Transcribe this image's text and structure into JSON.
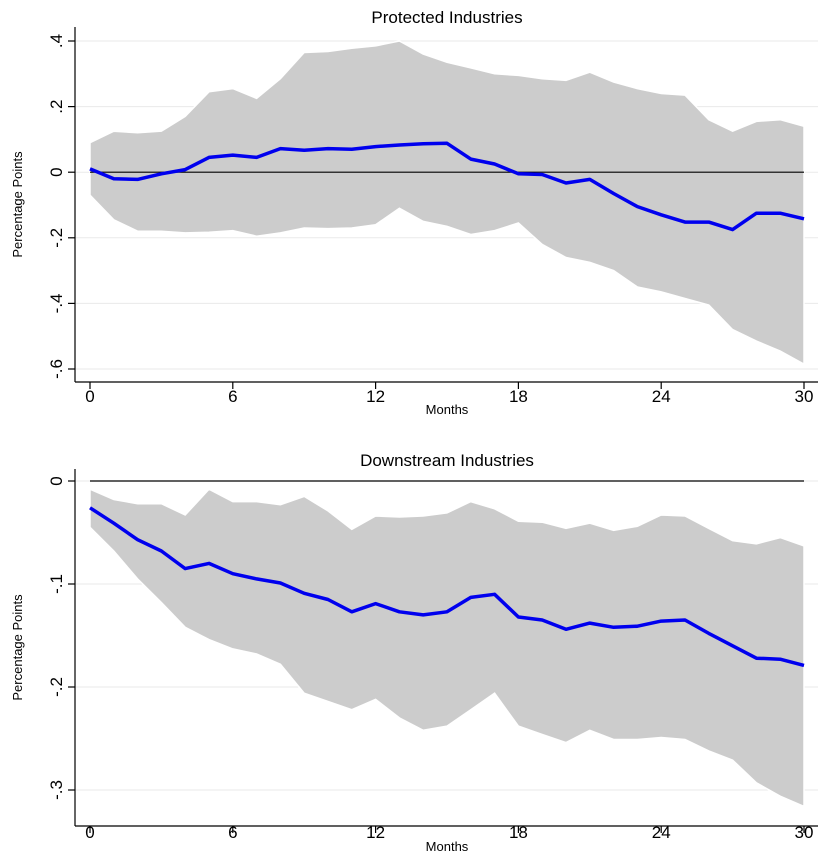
{
  "chart_data": [
    {
      "type": "line",
      "title": "Protected Industries",
      "xlabel": "Months",
      "ylabel": "Percentage Points",
      "xlim": [
        0,
        30
      ],
      "ylim": [
        -0.6,
        0.4
      ],
      "xticks": [
        0,
        6,
        12,
        18,
        24,
        30
      ],
      "xtick_labels": [
        "0",
        "6",
        "12",
        "18",
        "24",
        "30"
      ],
      "yticks": [
        -0.6,
        -0.4,
        -0.2,
        0,
        0.2,
        0.4
      ],
      "ytick_labels": [
        "-.6",
        "-.4",
        "-.2",
        "0",
        ".2",
        ".4"
      ],
      "grid": true,
      "zero_line": true,
      "colors": {
        "line": "#0000ee",
        "band": "#cccccc",
        "band_edge": "#ffffff",
        "zero_line": "#000000"
      },
      "x": [
        0,
        1,
        2,
        3,
        4,
        5,
        6,
        7,
        8,
        9,
        10,
        11,
        12,
        13,
        14,
        15,
        16,
        17,
        18,
        19,
        20,
        21,
        22,
        23,
        24,
        25,
        26,
        27,
        28,
        29,
        30
      ],
      "series": [
        {
          "values": [
            0.01,
            -0.02,
            -0.022,
            -0.005,
            0.008,
            0.045,
            0.052,
            0.045,
            0.072,
            0.067,
            0.072,
            0.07,
            0.078,
            0.083,
            0.087,
            0.088,
            0.04,
            0.025,
            -0.005,
            -0.007,
            -0.033,
            -0.022,
            -0.065,
            -0.105,
            -0.13,
            -0.152,
            -0.152,
            -0.175,
            -0.125,
            -0.125,
            -0.142
          ]
        }
      ],
      "band_upper": [
        0.09,
        0.125,
        0.12,
        0.125,
        0.17,
        0.245,
        0.255,
        0.225,
        0.285,
        0.365,
        0.368,
        0.378,
        0.385,
        0.4,
        0.36,
        0.335,
        0.318,
        0.3,
        0.295,
        0.285,
        0.28,
        0.305,
        0.275,
        0.255,
        0.24,
        0.235,
        0.16,
        0.125,
        0.155,
        0.16,
        0.14
      ],
      "band_lower": [
        -0.07,
        -0.145,
        -0.18,
        -0.18,
        -0.185,
        -0.183,
        -0.178,
        -0.195,
        -0.185,
        -0.17,
        -0.172,
        -0.17,
        -0.16,
        -0.11,
        -0.15,
        -0.165,
        -0.19,
        -0.178,
        -0.155,
        -0.22,
        -0.26,
        -0.275,
        -0.3,
        -0.35,
        -0.365,
        -0.385,
        -0.405,
        -0.48,
        -0.515,
        -0.545,
        -0.585
      ]
    },
    {
      "type": "line",
      "title": "Downstream Industries",
      "xlabel": "Months",
      "ylabel": "Percentage Points",
      "xlim": [
        0,
        30
      ],
      "ylim": [
        -0.3,
        0
      ],
      "xticks": [
        0,
        6,
        12,
        18,
        24,
        30
      ],
      "xtick_labels": [
        "0",
        "6",
        "12",
        "18",
        "24",
        "30"
      ],
      "yticks": [
        -0.3,
        -0.2,
        -0.1,
        0
      ],
      "ytick_labels": [
        "-.3",
        "-.2",
        "-.1",
        "0"
      ],
      "grid": true,
      "zero_line": true,
      "colors": {
        "line": "#0000ee",
        "band": "#cccccc",
        "band_edge": "#ffffff",
        "zero_line": "#000000"
      },
      "x": [
        0,
        1,
        2,
        3,
        4,
        5,
        6,
        7,
        8,
        9,
        10,
        11,
        12,
        13,
        14,
        15,
        16,
        17,
        18,
        19,
        20,
        21,
        22,
        23,
        24,
        25,
        26,
        27,
        28,
        29,
        30
      ],
      "series": [
        {
          "values": [
            -0.026,
            -0.041,
            -0.057,
            -0.068,
            -0.085,
            -0.08,
            -0.09,
            -0.095,
            -0.099,
            -0.109,
            -0.115,
            -0.127,
            -0.119,
            -0.127,
            -0.13,
            -0.127,
            -0.113,
            -0.11,
            -0.132,
            -0.135,
            -0.144,
            -0.138,
            -0.142,
            -0.141,
            -0.136,
            -0.135,
            -0.148,
            -0.16,
            -0.172,
            -0.173,
            -0.179
          ]
        }
      ],
      "band_upper": [
        -0.008,
        -0.018,
        -0.022,
        -0.022,
        -0.033,
        -0.008,
        -0.02,
        -0.02,
        -0.023,
        -0.015,
        -0.029,
        -0.047,
        -0.034,
        -0.035,
        -0.034,
        -0.031,
        -0.02,
        -0.027,
        -0.039,
        -0.04,
        -0.046,
        -0.041,
        -0.048,
        -0.044,
        -0.033,
        -0.034,
        -0.046,
        -0.058,
        -0.061,
        -0.055,
        -0.063
      ],
      "band_lower": [
        -0.045,
        -0.068,
        -0.095,
        -0.118,
        -0.142,
        -0.154,
        -0.163,
        -0.168,
        -0.178,
        -0.206,
        -0.214,
        -0.222,
        -0.212,
        -0.23,
        -0.242,
        -0.238,
        -0.222,
        -0.206,
        -0.238,
        -0.246,
        -0.254,
        -0.242,
        -0.251,
        -0.251,
        -0.249,
        -0.251,
        -0.262,
        -0.271,
        -0.293,
        -0.306,
        -0.316
      ]
    }
  ]
}
